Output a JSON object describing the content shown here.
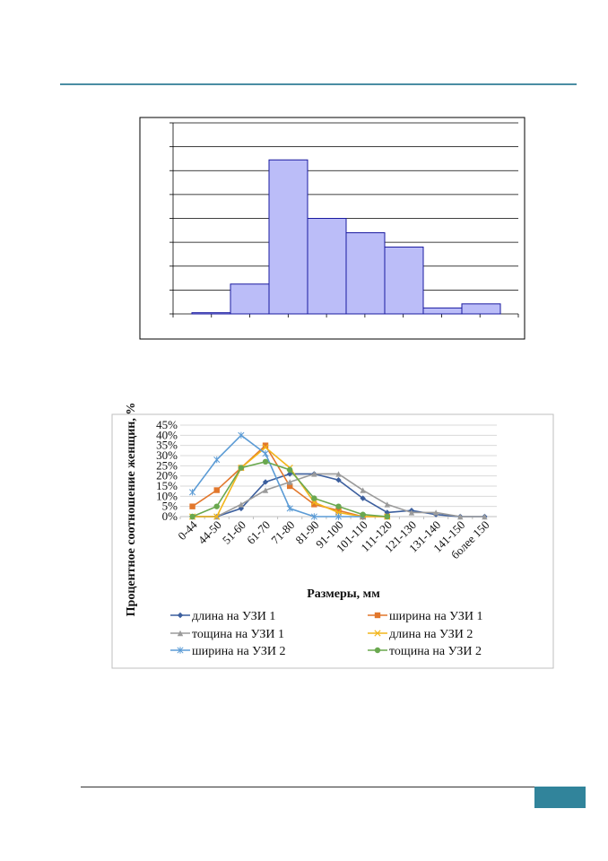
{
  "page": {
    "accent_color": "#31849b"
  },
  "chart_data": [
    {
      "type": "bar",
      "title": "",
      "xlabel": "",
      "ylabel": "",
      "grid": true,
      "bar_color": "#bbbdf8",
      "bar_edge": "#1a1aa0",
      "ylim": [
        0,
        8
      ],
      "values": [
        0.05,
        1.25,
        6.45,
        4.0,
        3.4,
        2.8,
        0.25,
        0.42
      ]
    },
    {
      "type": "line",
      "title": "",
      "xlabel": "Размеры, мм",
      "ylabel": "Процентное соотношение женщин, %",
      "ylim": [
        0,
        45
      ],
      "ytick_labels": [
        "0%",
        "5%",
        "10%",
        "15%",
        "20%",
        "25%",
        "30%",
        "35%",
        "40%",
        "45%"
      ],
      "legend_position": "bottom",
      "categories": [
        "0-44",
        "44-50",
        "51-60",
        "61-70",
        "71-80",
        "81-90",
        "91-100",
        "101-110",
        "111-120",
        "121-130",
        "131-140",
        "141-150",
        "более 150"
      ],
      "series": [
        {
          "name": "длина на УЗИ 1",
          "color": "#3c5f9e",
          "marker": "diamond",
          "values": [
            0,
            0,
            4,
            17,
            21,
            21,
            18,
            9,
            2,
            3,
            1,
            0,
            0
          ]
        },
        {
          "name": "ширина на УЗИ 1",
          "color": "#e2772c",
          "marker": "square",
          "values": [
            5,
            13,
            24,
            35,
            15,
            6,
            3,
            0,
            0,
            null,
            null,
            null,
            null
          ]
        },
        {
          "name": "тощина на УЗИ 1",
          "color": "#9b9b9b",
          "marker": "triangle",
          "values": [
            0,
            0,
            6,
            13,
            17,
            21,
            21,
            13,
            6,
            2,
            2,
            0,
            0
          ]
        },
        {
          "name": "длина на УЗИ 2",
          "color": "#f2b61b",
          "marker": "x",
          "values": [
            0,
            0,
            24,
            34,
            24,
            7,
            2,
            0,
            0,
            null,
            null,
            null,
            null
          ]
        },
        {
          "name": "ширина на УЗИ 2",
          "color": "#5b9bd5",
          "marker": "star",
          "values": [
            12,
            28,
            40,
            31,
            4,
            0,
            0,
            0,
            null,
            null,
            null,
            null,
            null
          ]
        },
        {
          "name": "тощина на УЗИ 2",
          "color": "#6aa84f",
          "marker": "circle",
          "values": [
            0,
            5,
            24,
            27,
            23,
            9,
            5,
            1,
            0,
            null,
            null,
            null,
            null
          ]
        }
      ]
    }
  ]
}
